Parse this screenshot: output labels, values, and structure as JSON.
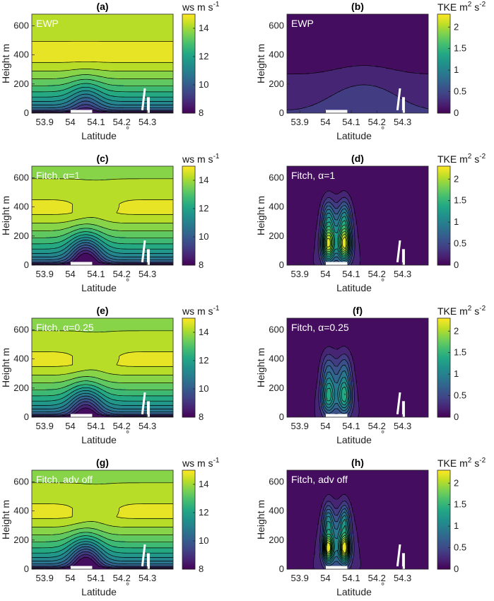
{
  "chart_data": [
    {
      "panel": "(a)",
      "type": "heatmap",
      "variable": "ws",
      "colorbar_label": {
        "base": "ws  m s",
        "sup": "-1"
      },
      "annotation": "EWP",
      "xlabel": "Latitude",
      "xlabel_unit": "°",
      "ylabel": "Height m",
      "xlim": [
        53.85,
        54.4
      ],
      "ylim": [
        0,
        680
      ],
      "xticks": [
        "53.9",
        "54",
        "54.1",
        "54.2",
        "54.3"
      ],
      "yticks": [
        "0",
        "200",
        "400",
        "600"
      ],
      "clim": [
        8,
        15
      ],
      "cbticks": [
        "8",
        "10",
        "12",
        "14"
      ],
      "scheme": "ws",
      "model": "ewp"
    },
    {
      "panel": "(b)",
      "type": "heatmap",
      "variable": "TKE",
      "colorbar_label": {
        "base": "TKE  m",
        "sup1": "2",
        "mid": " s",
        "sup": "-2"
      },
      "annotation": "EWP",
      "xlabel": "Latitude",
      "xlabel_unit": "°",
      "ylabel": "Height m",
      "xlim": [
        53.85,
        54.4
      ],
      "ylim": [
        0,
        680
      ],
      "xticks": [
        "53.9",
        "54",
        "54.1",
        "54.2",
        "54.3"
      ],
      "yticks": [
        "0",
        "200",
        "400",
        "600"
      ],
      "clim": [
        0,
        2.3
      ],
      "cbticks": [
        "0",
        "0.5",
        "1",
        "1.5",
        "2"
      ],
      "scheme": "tke",
      "model": "ewp"
    },
    {
      "panel": "(c)",
      "type": "heatmap",
      "variable": "ws",
      "colorbar_label": {
        "base": "ws  m s",
        "sup": "-1"
      },
      "annotation": "Fitch, α=1",
      "xlabel": "Latitude",
      "xlabel_unit": "°",
      "ylabel": "Height m",
      "xlim": [
        53.85,
        54.4
      ],
      "ylim": [
        0,
        680
      ],
      "xticks": [
        "53.9",
        "54",
        "54.1",
        "54.2",
        "54.3"
      ],
      "yticks": [
        "0",
        "200",
        "400",
        "600"
      ],
      "clim": [
        8,
        15
      ],
      "cbticks": [
        "8",
        "10",
        "12",
        "14"
      ],
      "scheme": "ws",
      "model": "fitch1"
    },
    {
      "panel": "(d)",
      "type": "heatmap",
      "variable": "TKE",
      "colorbar_label": {
        "base": "TKE  m",
        "sup1": "2",
        "mid": " s",
        "sup": "-2"
      },
      "annotation": "Fitch, α=1",
      "xlabel": "Latitude",
      "xlabel_unit": "°",
      "ylabel": "Height m",
      "xlim": [
        53.85,
        54.4
      ],
      "ylim": [
        0,
        680
      ],
      "xticks": [
        "53.9",
        "54",
        "54.1",
        "54.2",
        "54.3"
      ],
      "yticks": [
        "0",
        "200",
        "400",
        "600"
      ],
      "clim": [
        0,
        2.3
      ],
      "cbticks": [
        "0",
        "0.5",
        "1",
        "1.5",
        "2"
      ],
      "scheme": "tke",
      "model": "fitch1"
    },
    {
      "panel": "(e)",
      "type": "heatmap",
      "variable": "ws",
      "colorbar_label": {
        "base": "ws  m s",
        "sup": "-1"
      },
      "annotation": "Fitch, α=0.25",
      "xlabel": "Latitude",
      "xlabel_unit": "°",
      "ylabel": "Height m",
      "xlim": [
        53.85,
        54.4
      ],
      "ylim": [
        0,
        680
      ],
      "xticks": [
        "53.9",
        "54",
        "54.1",
        "54.2",
        "54.3"
      ],
      "yticks": [
        "0",
        "200",
        "400",
        "600"
      ],
      "clim": [
        8,
        15
      ],
      "cbticks": [
        "8",
        "10",
        "12",
        "14"
      ],
      "scheme": "ws",
      "model": "fitch025"
    },
    {
      "panel": "(f)",
      "type": "heatmap",
      "variable": "TKE",
      "colorbar_label": {
        "base": "TKE  m",
        "sup1": "2",
        "mid": " s",
        "sup": "-2"
      },
      "annotation": "Fitch, α=0.25",
      "xlabel": "Latitude",
      "xlabel_unit": "°",
      "ylabel": "Height m",
      "xlim": [
        53.85,
        54.4
      ],
      "ylim": [
        0,
        680
      ],
      "xticks": [
        "53.9",
        "54",
        "54.1",
        "54.2",
        "54.3"
      ],
      "yticks": [
        "0",
        "200",
        "400",
        "600"
      ],
      "clim": [
        0,
        2.3
      ],
      "cbticks": [
        "0",
        "0.5",
        "1",
        "1.5",
        "2"
      ],
      "scheme": "tke",
      "model": "fitch025"
    },
    {
      "panel": "(g)",
      "type": "heatmap",
      "variable": "ws",
      "colorbar_label": {
        "base": "ws  m s",
        "sup": "-1"
      },
      "annotation": "Fitch, adv off",
      "xlabel": "Latitude",
      "xlabel_unit": "°",
      "ylabel": "Height m",
      "xlim": [
        53.85,
        54.4
      ],
      "ylim": [
        0,
        680
      ],
      "xticks": [
        "53.9",
        "54",
        "54.1",
        "54.2",
        "54.3"
      ],
      "yticks": [
        "0",
        "200",
        "400",
        "600"
      ],
      "clim": [
        8,
        15
      ],
      "cbticks": [
        "8",
        "10",
        "12",
        "14"
      ],
      "scheme": "ws",
      "model": "advoff"
    },
    {
      "panel": "(h)",
      "type": "heatmap",
      "variable": "TKE",
      "colorbar_label": {
        "base": "TKE  m",
        "sup1": "2",
        "mid": " s",
        "sup": "-2"
      },
      "annotation": "Fitch, adv off",
      "xlabel": "Latitude",
      "xlabel_unit": "°",
      "ylabel": "Height m",
      "xlim": [
        53.85,
        54.4
      ],
      "ylim": [
        0,
        680
      ],
      "xticks": [
        "53.9",
        "54",
        "54.1",
        "54.2",
        "54.3"
      ],
      "yticks": [
        "0",
        "200",
        "400",
        "600"
      ],
      "clim": [
        0,
        2.3
      ],
      "cbticks": [
        "0",
        "0.5",
        "1",
        "1.5",
        "2"
      ],
      "scheme": "tke",
      "model": "advoff"
    }
  ],
  "colors": {
    "viridis_low": "#440154",
    "viridis_mid": "#21918c",
    "viridis_high": "#e6e419",
    "marker": "#ffffff"
  }
}
